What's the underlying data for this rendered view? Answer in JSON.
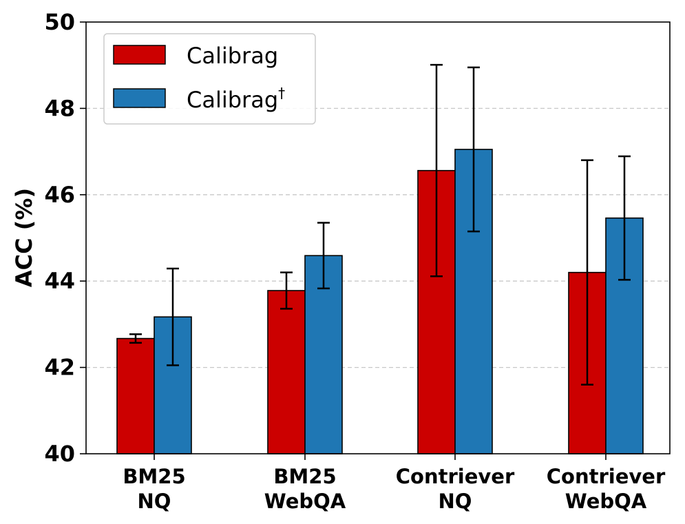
{
  "chart_data": {
    "type": "bar",
    "title": "",
    "xlabel": "",
    "ylabel": "ACC (%)",
    "ylim": [
      40,
      50
    ],
    "yticks": [
      "40",
      "42",
      "44",
      "46",
      "48",
      "50"
    ],
    "grid": true,
    "legend_position": "top-left",
    "categories": [
      [
        "BM25",
        "NQ"
      ],
      [
        "BM25",
        "WebQA"
      ],
      [
        "Contriever",
        "NQ"
      ],
      [
        "Contriever",
        "WebQA"
      ]
    ],
    "series": [
      {
        "name": "Calibrag",
        "superscript": "",
        "color": "#cc0000",
        "values": [
          42.67,
          43.78,
          46.56,
          44.2
        ],
        "errors": [
          0.1,
          0.42,
          2.45,
          2.6
        ]
      },
      {
        "name": "Calibrag",
        "superscript": "†",
        "color": "#1f77b4",
        "values": [
          43.17,
          44.59,
          47.05,
          45.46
        ],
        "errors": [
          1.12,
          0.76,
          1.9,
          1.43
        ]
      }
    ]
  }
}
